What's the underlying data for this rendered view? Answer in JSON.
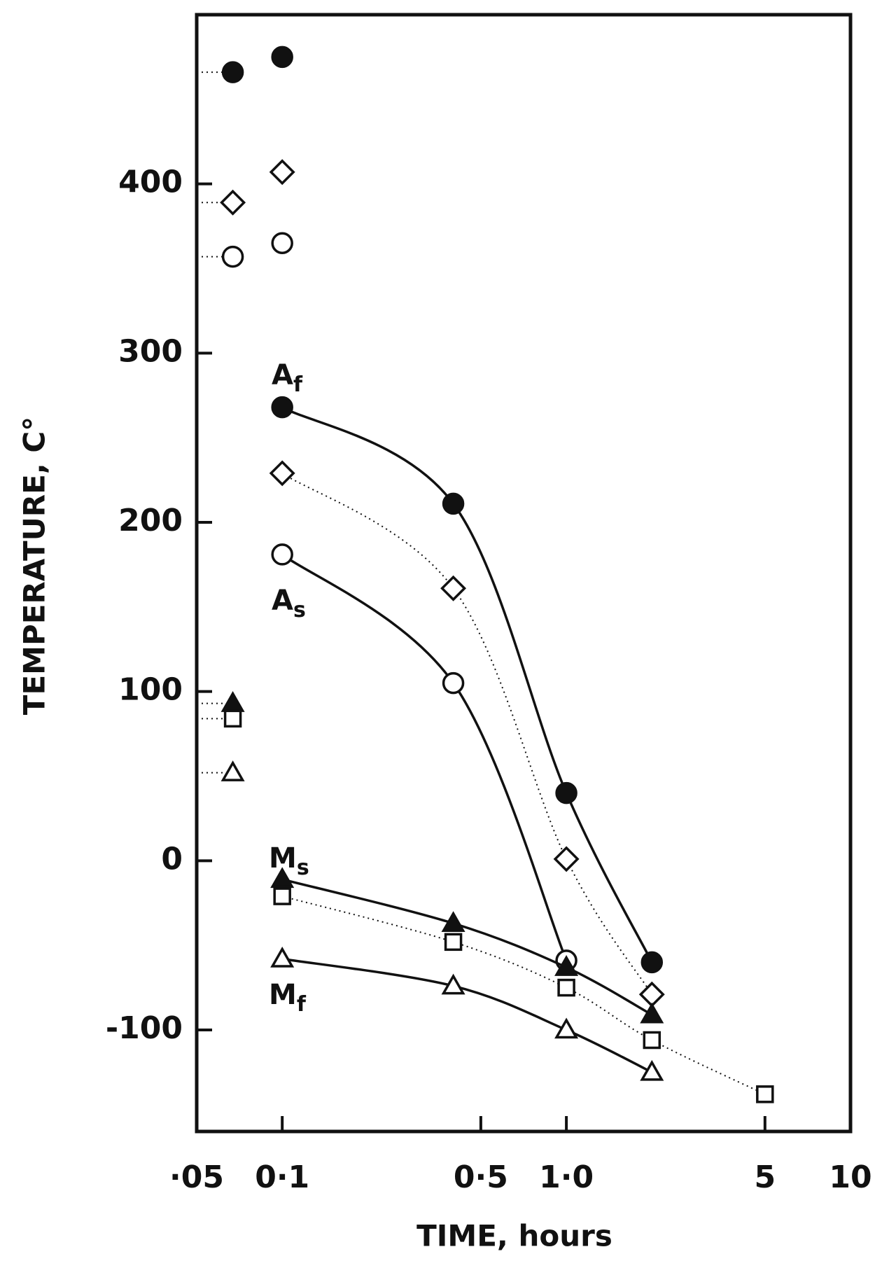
{
  "chart_data": {
    "type": "line",
    "xlabel": "TIME, hours",
    "ylabel": "TEMPERATURE, C°",
    "xscale": "log",
    "xlim": [
      0.05,
      10
    ],
    "xticks": [
      {
        "value": 0.05,
        "label": "·05"
      },
      {
        "value": 0.1,
        "label": "0·1"
      },
      {
        "value": 0.5,
        "label": "0·5"
      },
      {
        "value": 1,
        "label": "1·0"
      },
      5,
      10
    ],
    "ylim": [
      -160,
      500
    ],
    "yticks": [
      400,
      300,
      200,
      100,
      0,
      -100
    ],
    "color": "#111111",
    "series": [
      {
        "marker": "filled-circle",
        "line": null,
        "x": [
          0.067,
          0.1
        ],
        "values": [
          466,
          475
        ]
      },
      {
        "marker": "open-diamond",
        "line": null,
        "x": [
          0.067,
          0.1
        ],
        "values": [
          389,
          407
        ]
      },
      {
        "marker": "open-circle",
        "line": null,
        "x": [
          0.067,
          0.1
        ],
        "values": [
          357,
          365
        ]
      },
      {
        "marker": "filled-triangle",
        "line": null,
        "x": [
          0.067
        ],
        "values": [
          93
        ]
      },
      {
        "marker": "open-square",
        "line": null,
        "x": [
          0.067
        ],
        "values": [
          84
        ]
      },
      {
        "marker": "open-triangle",
        "line": null,
        "x": [
          0.067
        ],
        "values": [
          52
        ]
      },
      {
        "marker": "filled-circle",
        "line": "solid",
        "x": [
          0.1,
          0.4,
          1,
          2
        ],
        "values": [
          268,
          211,
          40,
          -60
        ]
      },
      {
        "marker": "open-diamond",
        "line": "dotted",
        "x": [
          0.1,
          0.4,
          1,
          2
        ],
        "values": [
          229,
          161,
          1,
          -79
        ]
      },
      {
        "marker": "open-circle",
        "line": "solid",
        "x": [
          0.1,
          0.4,
          1
        ],
        "values": [
          181,
          105,
          -59
        ]
      },
      {
        "marker": "filled-triangle",
        "line": "solid",
        "x": [
          0.1,
          0.4,
          1,
          2
        ],
        "values": [
          -11,
          -37,
          -63,
          -91
        ]
      },
      {
        "marker": "open-square",
        "line": "dotted",
        "x": [
          0.1,
          0.4,
          1,
          2,
          5
        ],
        "values": [
          -21,
          -48,
          -75,
          -106,
          -138
        ]
      },
      {
        "marker": "open-triangle",
        "line": "solid",
        "x": [
          0.1,
          0.4,
          1,
          2
        ],
        "values": [
          -58,
          -74,
          -100,
          -125
        ]
      }
    ],
    "annotations": [
      {
        "text": "A",
        "subscript": "f"
      },
      {
        "text": "A",
        "subscript": "s"
      },
      {
        "text": "M",
        "subscript": "s"
      },
      {
        "text": "M",
        "subscript": "f"
      }
    ]
  }
}
